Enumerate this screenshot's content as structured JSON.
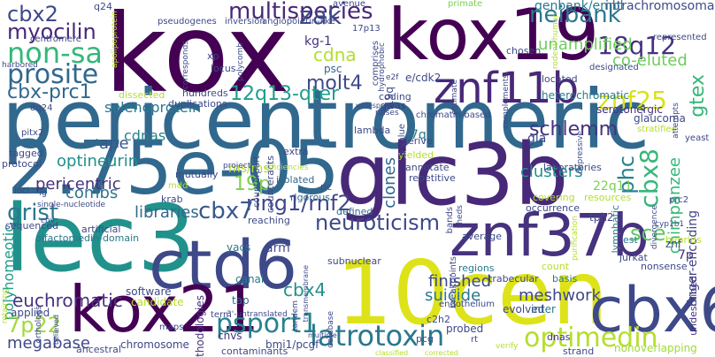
{
  "words": [
    {
      "text": "kox",
      "color": "#440154"
    },
    {
      "text": "pericentromeric",
      "color": "#31688e"
    },
    {
      "text": "kox19",
      "color": "#440154"
    },
    {
      "text": "2.75e-05",
      "color": "#31688e"
    },
    {
      "text": "glc3b",
      "color": "#482878"
    },
    {
      "text": "lec3",
      "color": "#21918c"
    },
    {
      "text": "10cen",
      "color": "#dde318"
    },
    {
      "text": "ctd6",
      "color": "#3e4989"
    },
    {
      "text": "kox21",
      "color": "#440154"
    },
    {
      "text": "znf37b",
      "color": "#46327e"
    },
    {
      "text": "cbx6",
      "color": "#3e4989"
    },
    {
      "text": "znf11b",
      "color": "#482878"
    },
    {
      "text": "latrotoxin",
      "color": "#2a788e"
    },
    {
      "text": "optimedin",
      "color": "#b5de2b"
    },
    {
      "text": "psport1",
      "color": "#26828e"
    },
    {
      "text": "neiban k",
      "color": "#2a788e"
    },
    {
      "text": "multispecies",
      "color": "#482878"
    },
    {
      "text": "non-sa",
      "color": "#35b779"
    },
    {
      "text": "prosite",
      "color": "#31688e"
    },
    {
      "text": "cbx2",
      "color": "#3e4989"
    },
    {
      "text": "myocilin",
      "color": "#482878"
    },
    {
      "text": "zak",
      "color": "#3e4989"
    },
    {
      "text": "18q12",
      "color": "#46327e"
    },
    {
      "text": "znf25",
      "color": "#d8e219"
    },
    {
      "text": "cbx-prc1",
      "color": "#31688e"
    },
    {
      "text": "12q13-qter",
      "color": "#1f9e89"
    },
    {
      "text": "molt4",
      "color": "#3e4989"
    },
    {
      "text": "cdna",
      "color": "#b5de2b"
    },
    {
      "text": "gtex",
      "color": "#35b779"
    },
    {
      "text": "schlemm",
      "color": "#46327e"
    },
    {
      "text": "neuroticism",
      "color": "#3e4989"
    },
    {
      "text": "ring1/rnf2",
      "color": "#404688"
    },
    {
      "text": "cbx7",
      "color": "#38588c"
    },
    {
      "text": "grist",
      "color": "#2a788e"
    },
    {
      "text": "cbx8",
      "color": "#35b779"
    },
    {
      "text": "phc",
      "color": "#26828e"
    },
    {
      "text": "19p",
      "color": "#7ad151"
    },
    {
      "text": "cbx4",
      "color": "#21918c"
    },
    {
      "text": "polyhomeotic",
      "color": "#1f9e89"
    },
    {
      "text": "euchromatic",
      "color": "#46327e"
    },
    {
      "text": "megabase",
      "color": "#3e4989"
    },
    {
      "text": "7p22",
      "color": "#a0da39"
    },
    {
      "text": "sce",
      "color": "#5ec962"
    },
    {
      "text": "meshwork",
      "color": "#3e4989"
    },
    {
      "text": "suicide",
      "color": "#2a788e"
    },
    {
      "text": "finished",
      "color": "#3e4989"
    },
    {
      "text": "clones",
      "color": "#31688e"
    },
    {
      "text": "clusters",
      "color": "#21918c"
    },
    {
      "text": "combs",
      "color": "#2a788e"
    },
    {
      "text": "optineurin",
      "color": "#21918c"
    },
    {
      "text": "pericentric",
      "color": "#46327e"
    },
    {
      "text": "libraries",
      "color": "#31688e"
    },
    {
      "text": "ape",
      "color": "#38588c"
    },
    {
      "text": "cdnas",
      "color": "#26828e"
    },
    {
      "text": "selenoprotein",
      "color": "#2a788e"
    },
    {
      "text": "unamplified",
      "color": "#6ccd5a"
    },
    {
      "text": "co-eluted",
      "color": "#6ccd5a"
    },
    {
      "text": "intrachromosomal",
      "color": "#3e4989"
    },
    {
      "text": "genbank/embl",
      "color": "#2a788e"
    },
    {
      "text": "kg-1",
      "color": "#46327e"
    },
    {
      "text": "psc",
      "color": "#31688e"
    },
    {
      "text": "e/cdk2",
      "color": "#3e4989"
    },
    {
      "text": "heterochromatic",
      "color": "#2a788e"
    },
    {
      "text": "glaucoma",
      "color": "#3e4989"
    },
    {
      "text": "serotonergic",
      "color": "#46327e"
    },
    {
      "text": "chimpanzee",
      "color": "#35b779"
    },
    {
      "text": "finger-encoding",
      "color": "#404688"
    },
    {
      "text": "tph2",
      "color": "#3e4989"
    },
    {
      "text": "7p",
      "color": "#46327e"
    },
    {
      "text": "7q",
      "color": "#2a788e"
    },
    {
      "text": "gla",
      "color": "#3e4989"
    },
    {
      "text": "22q11",
      "color": "#7ad151"
    },
    {
      "text": "ms/ms",
      "color": "#b5de2b"
    },
    {
      "text": "arm",
      "color": "#3e4989"
    },
    {
      "text": "yacs",
      "color": "#2a788e"
    },
    {
      "text": "tap",
      "color": "#31688e"
    },
    {
      "text": "chromosome",
      "color": "#3e4989"
    },
    {
      "text": "methodologies",
      "color": "#46327e"
    },
    {
      "text": "inter",
      "color": "#2a788e"
    },
    {
      "text": "probed",
      "color": "#3e4989"
    },
    {
      "text": "evolved",
      "color": "#3e4989"
    },
    {
      "text": "bmi1/pcgf",
      "color": "#3e4989"
    },
    {
      "text": "cnvs",
      "color": "#46327e"
    },
    {
      "text": "canal",
      "color": "#2a788e"
    },
    {
      "text": "software",
      "color": "#3e4989"
    },
    {
      "text": "candidate",
      "color": "#b5de2b"
    },
    {
      "text": "applied",
      "color": "#3e4989"
    },
    {
      "text": "ancestral",
      "color": "#3e4989"
    },
    {
      "text": "contaminants",
      "color": "#3e4989"
    },
    {
      "text": "nonoverlapping",
      "color": "#a0da39"
    },
    {
      "text": "undescribed",
      "color": "#46327e"
    },
    {
      "text": "dnas",
      "color": "#46327e"
    },
    {
      "text": "strand",
      "color": "#3e4989"
    },
    {
      "text": "nonsense",
      "color": "#3e4989"
    },
    {
      "text": "hybrids",
      "color": "#b5de2b"
    },
    {
      "text": "znf",
      "color": "#3e4989"
    },
    {
      "text": "jurkat",
      "color": "#3e4989"
    },
    {
      "text": "est",
      "color": "#2a788e"
    },
    {
      "text": "lymphatic",
      "color": "#2a788e"
    },
    {
      "text": "defined",
      "color": "#31688e"
    },
    {
      "text": "isolated",
      "color": "#31688e"
    },
    {
      "text": "mutually",
      "color": "#3e4989"
    },
    {
      "text": "rigorous",
      "color": "#31688e"
    },
    {
      "text": "reaching",
      "color": "#3e4989"
    },
    {
      "text": "olfactomedin-domain",
      "color": "#2a788e"
    },
    {
      "text": "artificial",
      "color": "#3e4989"
    },
    {
      "text": "q24",
      "color": "#3e4989"
    },
    {
      "text": "xp",
      "color": "#3e4989"
    },
    {
      "text": "locus",
      "color": "#3e4989"
    },
    {
      "text": "coding",
      "color": "#3e4989"
    },
    {
      "text": "gwas",
      "color": "#46327e"
    },
    {
      "text": "hundreds",
      "color": "#3e4989"
    },
    {
      "text": "duplications",
      "color": "#3e4989"
    },
    {
      "text": "dissected",
      "color": "#b5de2b"
    },
    {
      "text": "counteracts",
      "color": "#3e4989"
    },
    {
      "text": "extra",
      "color": "#3e4989"
    },
    {
      "text": "lambda",
      "color": "#3e4989"
    },
    {
      "text": "derive",
      "color": "#3e4989"
    },
    {
      "text": "yielded",
      "color": "#b5de2b"
    },
    {
      "text": "annotate",
      "color": "#3e4989"
    },
    {
      "text": "repetitive",
      "color": "#3e4989"
    },
    {
      "text": "laboratories",
      "color": "#3e4989"
    },
    {
      "text": "resources",
      "color": "#b5de2b"
    },
    {
      "text": "occurrence",
      "color": "#3e4989"
    },
    {
      "text": "covering",
      "color": "#b5de2b"
    },
    {
      "text": "count",
      "color": "#b5de2b"
    },
    {
      "text": "chosen",
      "color": "#3e4989"
    },
    {
      "text": "located",
      "color": "#3e4989"
    },
    {
      "text": "primate",
      "color": "#7ad151"
    },
    {
      "text": "centromere",
      "color": "#3e4989"
    },
    {
      "text": "protocol",
      "color": "#3e4989"
    },
    {
      "text": "tagged",
      "color": "#3e4989"
    },
    {
      "text": "sequenced",
      "color": "#3e4989"
    },
    {
      "text": "pc",
      "color": "#3e4989"
    },
    {
      "text": "regions",
      "color": "#2a788e"
    },
    {
      "text": "c2h2",
      "color": "#3e4989"
    },
    {
      "text": "pcg",
      "color": "#3e4989"
    },
    {
      "text": "average",
      "color": "#3e4989"
    },
    {
      "text": "krab",
      "color": "#3e4989"
    },
    {
      "text": "trabecular",
      "color": "#3e4989"
    },
    {
      "text": "basis",
      "color": "#2a788e"
    },
    {
      "text": "subnuclear",
      "color": "#3e4989"
    },
    {
      "text": "pseudogenes",
      "color": "#3e4989"
    },
    {
      "text": "inversion",
      "color": "#3e4989"
    },
    {
      "text": "angiopoietin-like",
      "color": "#3e4989"
    },
    {
      "text": "chromatin-based",
      "color": "#3e4989"
    },
    {
      "text": "yeast",
      "color": "#3e4989"
    },
    {
      "text": "represented",
      "color": "#3e4989"
    },
    {
      "text": "designated",
      "color": "#3e4989"
    },
    {
      "text": "stratified",
      "color": "#b5de2b"
    },
    {
      "text": "prc2",
      "color": "#3e4989"
    },
    {
      "text": "8q24",
      "color": "#3e4989"
    },
    {
      "text": "pitx2",
      "color": "#3e4989"
    },
    {
      "text": "harbored",
      "color": "#3e4989"
    },
    {
      "text": "loci",
      "color": "#3e4989"
    },
    {
      "text": "ig",
      "color": "#3e4989"
    },
    {
      "text": "single-nucleotide",
      "color": "#3e4989"
    },
    {
      "text": "efficiencies",
      "color": "#b5de2b"
    },
    {
      "text": "mdd",
      "color": "#b5de2b"
    },
    {
      "text": "project",
      "color": "#3e4989"
    },
    {
      "text": "term",
      "color": "#3e4989"
    },
    {
      "text": "3'-untranslated",
      "color": "#3e4989"
    },
    {
      "text": "maps",
      "color": "#3e4989"
    },
    {
      "text": "endothelium",
      "color": "#3e4989"
    },
    {
      "text": "avenue",
      "color": "#3e4989"
    },
    {
      "text": "verify",
      "color": "#b5de2b"
    },
    {
      "text": "classified",
      "color": "#b5de2b"
    },
    {
      "text": "corrected",
      "color": "#b5de2b"
    },
    {
      "text": "multiple",
      "color": "#3e4989"
    },
    {
      "text": "widespread",
      "color": "#3e4989"
    },
    {
      "text": "raises",
      "color": "#3e4989"
    },
    {
      "text": "19q",
      "color": "#3e4989"
    },
    {
      "text": "17p13",
      "color": "#3e4989"
    },
    {
      "text": "e2f",
      "color": "#3e4989"
    },
    {
      "text": "cyp1b1",
      "color": "#3e4989"
    },
    {
      "text": "divergence",
      "color": "#3e4989"
    },
    {
      "text": "purification",
      "color": "#b5de2b"
    },
    {
      "text": "depressive",
      "color": "#3e4989"
    },
    {
      "text": "comprises",
      "color": "#3e4989"
    },
    {
      "text": "hydrophobic",
      "color": "#3e4989"
    },
    {
      "text": "p-value",
      "color": "#3e4989"
    },
    {
      "text": "cnv",
      "color": "#3e4989"
    },
    {
      "text": "counterpart",
      "color": "#3e4989"
    },
    {
      "text": "corresponds",
      "color": "#3e4989"
    },
    {
      "text": "polycomb",
      "color": "#3e4989"
    },
    {
      "text": "apolipoprotein",
      "color": "#b5de2b"
    },
    {
      "text": "transmembrane",
      "color": "#3e4989"
    },
    {
      "text": "orthologs",
      "color": "#3e4989"
    },
    {
      "text": "retaining",
      "color": "#b5de2b"
    },
    {
      "text": "believed",
      "color": "#3e4989"
    },
    {
      "text": "breakpoints",
      "color": "#3e4989"
    },
    {
      "text": "bands",
      "color": "#3e4989"
    },
    {
      "text": "sheds",
      "color": "#3e4989"
    },
    {
      "text": "database",
      "color": "#3e4989"
    },
    {
      "text": "tandem",
      "color": "#3e4989"
    },
    {
      "text": "attempts",
      "color": "#3e4989"
    },
    {
      "text": "complements",
      "color": "#3e4989"
    },
    {
      "text": "rodent-human",
      "color": "#b5de2b"
    },
    {
      "text": "rt",
      "color": "#3e4989"
    },
    {
      "text": "estimate",
      "color": "#3e4989"
    }
  ]
}
